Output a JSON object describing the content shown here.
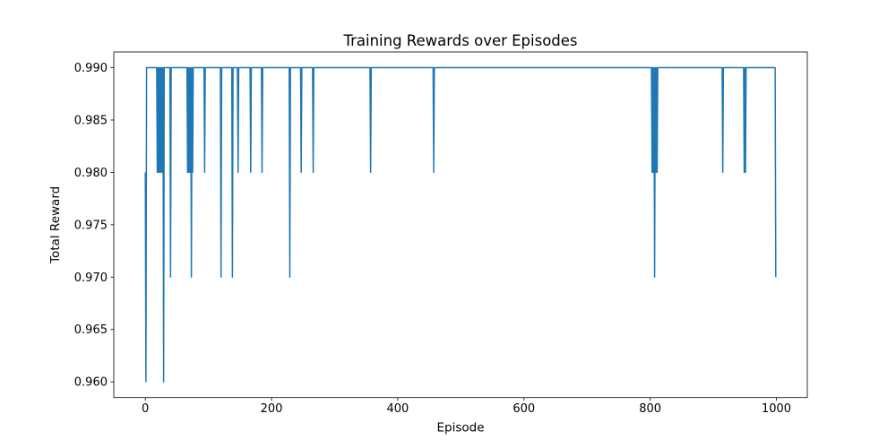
{
  "figure": {
    "background": "#ffffff"
  },
  "chart_data": {
    "type": "line",
    "title": "Training Rewards over Episodes",
    "xlabel": "Episode",
    "ylabel": "Total Reward",
    "grid": false,
    "legend": null,
    "line_color": "#1f77b4",
    "line_width": 1.5,
    "axis_color": "#000000",
    "text_color": "#000000",
    "xlim": [
      -49.95,
      1048.95
    ],
    "ylim": [
      0.9585,
      0.9915
    ],
    "xticks": [
      0,
      200,
      400,
      600,
      800,
      1000
    ],
    "xtick_labels": [
      "0",
      "200",
      "400",
      "600",
      "800",
      "1000"
    ],
    "yticks": [
      0.96,
      0.965,
      0.97,
      0.975,
      0.98,
      0.985,
      0.99
    ],
    "ytick_labels": [
      "0.960",
      "0.965",
      "0.970",
      "0.975",
      "0.980",
      "0.985",
      "0.990"
    ],
    "series": {
      "name": "total_reward",
      "n_points": 1000,
      "baseline": 0.99,
      "deviations": [
        [
          0,
          0.98
        ],
        [
          1,
          0.96
        ],
        [
          19,
          0.98
        ],
        [
          21,
          0.98
        ],
        [
          23,
          0.98
        ],
        [
          25,
          0.98
        ],
        [
          27,
          0.98
        ],
        [
          29,
          0.96
        ],
        [
          40,
          0.97
        ],
        [
          67,
          0.98
        ],
        [
          69,
          0.98
        ],
        [
          71,
          0.98
        ],
        [
          73,
          0.97
        ],
        [
          75,
          0.98
        ],
        [
          94,
          0.98
        ],
        [
          120,
          0.97
        ],
        [
          138,
          0.97
        ],
        [
          147,
          0.98
        ],
        [
          167,
          0.98
        ],
        [
          185,
          0.98
        ],
        [
          229,
          0.97
        ],
        [
          247,
          0.98
        ],
        [
          266,
          0.98
        ],
        [
          357,
          0.98
        ],
        [
          457,
          0.98
        ],
        [
          803,
          0.98
        ],
        [
          805,
          0.98
        ],
        [
          807,
          0.97
        ],
        [
          809,
          0.98
        ],
        [
          811,
          0.98
        ],
        [
          915,
          0.98
        ],
        [
          949,
          0.98
        ],
        [
          951,
          0.98
        ],
        [
          999,
          0.97
        ]
      ]
    }
  }
}
